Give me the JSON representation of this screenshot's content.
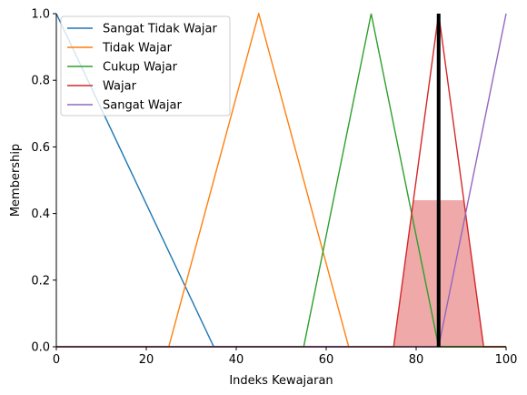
{
  "chart_data": {
    "type": "line",
    "xlabel": "Indeks Kewajaran",
    "ylabel": "Membership",
    "xlim": [
      0,
      100
    ],
    "ylim": [
      0,
      1.0
    ],
    "xticks": [
      0,
      20,
      40,
      60,
      80,
      100
    ],
    "yticks": [
      0.0,
      0.2,
      0.4,
      0.6,
      0.8,
      1.0
    ],
    "grid": false,
    "legend_position": "top-left",
    "series": [
      {
        "name": "Sangat Tidak Wajar",
        "color": "#1f77b4",
        "x": [
          0,
          0,
          35,
          100
        ],
        "y": [
          1,
          1,
          0,
          0
        ]
      },
      {
        "name": "Tidak Wajar",
        "color": "#ff7f0e",
        "x": [
          0,
          25,
          45,
          65,
          100
        ],
        "y": [
          0,
          0,
          1,
          0,
          0
        ]
      },
      {
        "name": "Cukup Wajar",
        "color": "#2ca02c",
        "x": [
          0,
          55,
          70,
          85,
          100
        ],
        "y": [
          0,
          0,
          1,
          0,
          0
        ]
      },
      {
        "name": "Wajar",
        "color": "#d62728",
        "x": [
          0,
          75,
          85,
          95,
          100
        ],
        "y": [
          0,
          0,
          1,
          0,
          0
        ]
      },
      {
        "name": "Sangat Wajar",
        "color": "#9467bd",
        "x": [
          0,
          85,
          100,
          100
        ],
        "y": [
          0,
          0,
          1,
          1
        ]
      }
    ],
    "activation": {
      "color": "#d62728",
      "x": [
        75,
        79.4,
        90.6,
        95
      ],
      "y": [
        0,
        0.44,
        0.44,
        0
      ]
    },
    "marker_line": {
      "x": 85,
      "y": [
        0,
        1
      ],
      "color": "#000000"
    }
  }
}
